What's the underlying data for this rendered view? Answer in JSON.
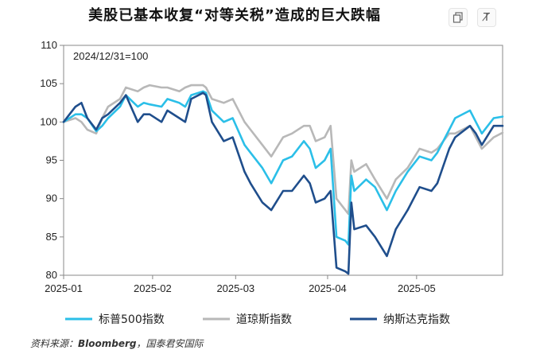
{
  "title": "美股已基本收复“对等关税”造成的巨大跌幅",
  "toolbar": {
    "copy_icon": "copy-icon",
    "translate_icon": "translate-icon",
    "translate_label": "T̸"
  },
  "source": {
    "prefix": "资料来源：",
    "name": "Bloomberg",
    "suffix": "，国泰君安国际"
  },
  "chart_data": {
    "type": "line",
    "annotation": "2024/12/31=100",
    "xlim": [
      "2025-01-02",
      "2025-05-30"
    ],
    "ylim": [
      80,
      110
    ],
    "yticks": [
      80,
      85,
      90,
      95,
      100,
      105,
      110
    ],
    "xticks": [
      "2025-01",
      "2025-02",
      "2025-03",
      "2025-04",
      "2025-05"
    ],
    "xtick_dates": [
      "2025-01-01",
      "2025-02-01",
      "2025-03-01",
      "2025-04-01",
      "2025-05-01"
    ],
    "grid": false,
    "legend_position": "bottom",
    "series": [
      {
        "name": "标普500指数",
        "color": "#2bbfe8",
        "points": [
          [
            "2025-01-02",
            100.0
          ],
          [
            "2025-01-06",
            101.0
          ],
          [
            "2025-01-08",
            101.0
          ],
          [
            "2025-01-10",
            100.5
          ],
          [
            "2025-01-13",
            98.8
          ],
          [
            "2025-01-15",
            99.5
          ],
          [
            "2025-01-17",
            100.5
          ],
          [
            "2025-01-21",
            102.0
          ],
          [
            "2025-01-23",
            103.5
          ],
          [
            "2025-01-27",
            102.0
          ],
          [
            "2025-01-29",
            102.5
          ],
          [
            "2025-01-31",
            102.3
          ],
          [
            "2025-02-04",
            102.0
          ],
          [
            "2025-02-06",
            103.0
          ],
          [
            "2025-02-10",
            102.5
          ],
          [
            "2025-02-12",
            102.0
          ],
          [
            "2025-02-14",
            103.5
          ],
          [
            "2025-02-18",
            104.0
          ],
          [
            "2025-02-19",
            103.8
          ],
          [
            "2025-02-21",
            101.5
          ],
          [
            "2025-02-25",
            100.0
          ],
          [
            "2025-02-28",
            100.5
          ],
          [
            "2025-03-04",
            97.0
          ],
          [
            "2025-03-06",
            96.0
          ],
          [
            "2025-03-10",
            94.0
          ],
          [
            "2025-03-13",
            92.0
          ],
          [
            "2025-03-17",
            95.0
          ],
          [
            "2025-03-20",
            95.5
          ],
          [
            "2025-03-24",
            97.5
          ],
          [
            "2025-03-26",
            96.5
          ],
          [
            "2025-03-28",
            94.0
          ],
          [
            "2025-03-31",
            95.0
          ],
          [
            "2025-04-02",
            96.5
          ],
          [
            "2025-04-04",
            85.0
          ],
          [
            "2025-04-07",
            84.5
          ],
          [
            "2025-04-08",
            84.0
          ],
          [
            "2025-04-09",
            93.0
          ],
          [
            "2025-04-10",
            91.0
          ],
          [
            "2025-04-14",
            92.5
          ],
          [
            "2025-04-17",
            91.5
          ],
          [
            "2025-04-21",
            88.5
          ],
          [
            "2025-04-24",
            91.0
          ],
          [
            "2025-04-28",
            93.5
          ],
          [
            "2025-05-02",
            95.5
          ],
          [
            "2025-05-06",
            95.0
          ],
          [
            "2025-05-08",
            96.0
          ],
          [
            "2025-05-12",
            99.0
          ],
          [
            "2025-05-14",
            100.5
          ],
          [
            "2025-05-19",
            101.5
          ],
          [
            "2025-05-21",
            100.0
          ],
          [
            "2025-05-23",
            98.5
          ],
          [
            "2025-05-27",
            100.5
          ],
          [
            "2025-05-30",
            100.7
          ]
        ]
      },
      {
        "name": "道琼斯指数",
        "color": "#b8b8b8",
        "points": [
          [
            "2025-01-02",
            100.0
          ],
          [
            "2025-01-06",
            100.5
          ],
          [
            "2025-01-08",
            100.0
          ],
          [
            "2025-01-10",
            99.0
          ],
          [
            "2025-01-13",
            98.5
          ],
          [
            "2025-01-15",
            100.5
          ],
          [
            "2025-01-17",
            102.0
          ],
          [
            "2025-01-21",
            103.0
          ],
          [
            "2025-01-23",
            104.5
          ],
          [
            "2025-01-27",
            104.0
          ],
          [
            "2025-01-29",
            104.5
          ],
          [
            "2025-01-31",
            104.8
          ],
          [
            "2025-02-04",
            104.5
          ],
          [
            "2025-02-06",
            104.5
          ],
          [
            "2025-02-10",
            104.0
          ],
          [
            "2025-02-12",
            104.5
          ],
          [
            "2025-02-14",
            104.8
          ],
          [
            "2025-02-18",
            104.8
          ],
          [
            "2025-02-19",
            104.5
          ],
          [
            "2025-02-21",
            103.0
          ],
          [
            "2025-02-25",
            102.5
          ],
          [
            "2025-02-28",
            103.0
          ],
          [
            "2025-03-04",
            100.0
          ],
          [
            "2025-03-06",
            99.0
          ],
          [
            "2025-03-10",
            97.0
          ],
          [
            "2025-03-13",
            95.5
          ],
          [
            "2025-03-17",
            98.0
          ],
          [
            "2025-03-20",
            98.5
          ],
          [
            "2025-03-24",
            99.5
          ],
          [
            "2025-03-26",
            99.5
          ],
          [
            "2025-03-28",
            97.5
          ],
          [
            "2025-03-31",
            98.0
          ],
          [
            "2025-04-02",
            99.5
          ],
          [
            "2025-04-04",
            90.0
          ],
          [
            "2025-04-07",
            88.5
          ],
          [
            "2025-04-08",
            88.0
          ],
          [
            "2025-04-09",
            95.0
          ],
          [
            "2025-04-10",
            93.5
          ],
          [
            "2025-04-14",
            94.5
          ],
          [
            "2025-04-17",
            92.5
          ],
          [
            "2025-04-21",
            90.0
          ],
          [
            "2025-04-24",
            92.5
          ],
          [
            "2025-04-28",
            94.0
          ],
          [
            "2025-05-02",
            96.5
          ],
          [
            "2025-05-06",
            96.0
          ],
          [
            "2025-05-08",
            96.5
          ],
          [
            "2025-05-12",
            98.5
          ],
          [
            "2025-05-14",
            98.5
          ],
          [
            "2025-05-19",
            99.5
          ],
          [
            "2025-05-21",
            98.0
          ],
          [
            "2025-05-23",
            96.5
          ],
          [
            "2025-05-27",
            98.0
          ],
          [
            "2025-05-30",
            98.6
          ]
        ]
      },
      {
        "name": "纳斯达克指数",
        "color": "#1f4e8c",
        "points": [
          [
            "2025-01-02",
            100.0
          ],
          [
            "2025-01-06",
            102.0
          ],
          [
            "2025-01-08",
            102.5
          ],
          [
            "2025-01-10",
            100.5
          ],
          [
            "2025-01-13",
            99.0
          ],
          [
            "2025-01-15",
            100.5
          ],
          [
            "2025-01-17",
            101.0
          ],
          [
            "2025-01-21",
            102.5
          ],
          [
            "2025-01-23",
            103.5
          ],
          [
            "2025-01-27",
            100.0
          ],
          [
            "2025-01-29",
            101.0
          ],
          [
            "2025-01-31",
            101.0
          ],
          [
            "2025-02-04",
            100.0
          ],
          [
            "2025-02-06",
            101.5
          ],
          [
            "2025-02-10",
            100.5
          ],
          [
            "2025-02-12",
            100.0
          ],
          [
            "2025-02-14",
            103.0
          ],
          [
            "2025-02-18",
            103.8
          ],
          [
            "2025-02-19",
            103.5
          ],
          [
            "2025-02-21",
            100.0
          ],
          [
            "2025-02-25",
            97.5
          ],
          [
            "2025-02-28",
            98.0
          ],
          [
            "2025-03-04",
            93.5
          ],
          [
            "2025-03-06",
            92.0
          ],
          [
            "2025-03-10",
            89.5
          ],
          [
            "2025-03-13",
            88.5
          ],
          [
            "2025-03-17",
            91.0
          ],
          [
            "2025-03-20",
            91.0
          ],
          [
            "2025-03-24",
            93.0
          ],
          [
            "2025-03-26",
            92.0
          ],
          [
            "2025-03-28",
            89.5
          ],
          [
            "2025-03-31",
            90.0
          ],
          [
            "2025-04-02",
            91.0
          ],
          [
            "2025-04-04",
            81.0
          ],
          [
            "2025-04-07",
            80.5
          ],
          [
            "2025-04-08",
            80.2
          ],
          [
            "2025-04-09",
            89.5
          ],
          [
            "2025-04-10",
            86.0
          ],
          [
            "2025-04-14",
            86.5
          ],
          [
            "2025-04-17",
            85.0
          ],
          [
            "2025-04-21",
            82.5
          ],
          [
            "2025-04-24",
            86.0
          ],
          [
            "2025-04-28",
            88.5
          ],
          [
            "2025-05-02",
            91.5
          ],
          [
            "2025-05-06",
            91.0
          ],
          [
            "2025-05-08",
            92.0
          ],
          [
            "2025-05-12",
            96.5
          ],
          [
            "2025-05-14",
            98.0
          ],
          [
            "2025-05-19",
            99.5
          ],
          [
            "2025-05-21",
            98.5
          ],
          [
            "2025-05-23",
            97.0
          ],
          [
            "2025-05-27",
            99.5
          ],
          [
            "2025-05-30",
            99.5
          ]
        ]
      }
    ]
  }
}
